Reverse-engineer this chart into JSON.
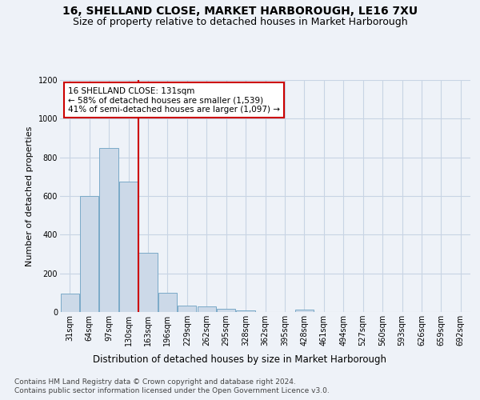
{
  "title": "16, SHELLAND CLOSE, MARKET HARBOROUGH, LE16 7XU",
  "subtitle": "Size of property relative to detached houses in Market Harborough",
  "xlabel": "Distribution of detached houses by size in Market Harborough",
  "ylabel": "Number of detached properties",
  "categories": [
    "31sqm",
    "64sqm",
    "97sqm",
    "130sqm",
    "163sqm",
    "196sqm",
    "229sqm",
    "262sqm",
    "295sqm",
    "328sqm",
    "362sqm",
    "395sqm",
    "428sqm",
    "461sqm",
    "494sqm",
    "527sqm",
    "560sqm",
    "593sqm",
    "626sqm",
    "659sqm",
    "692sqm"
  ],
  "values": [
    95,
    598,
    848,
    675,
    305,
    100,
    33,
    30,
    18,
    10,
    0,
    0,
    12,
    0,
    0,
    0,
    0,
    0,
    0,
    0,
    0
  ],
  "bar_color": "#ccd9e8",
  "bar_edge_color": "#7aaac8",
  "reference_line_color": "#cc0000",
  "annotation_text": "16 SHELLAND CLOSE: 131sqm\n← 58% of detached houses are smaller (1,539)\n41% of semi-detached houses are larger (1,097) →",
  "annotation_box_color": "#ffffff",
  "annotation_box_edge_color": "#cc0000",
  "ylim": [
    0,
    1200
  ],
  "yticks": [
    0,
    200,
    400,
    600,
    800,
    1000,
    1200
  ],
  "grid_color": "#c8d4e4",
  "background_color": "#eef2f8",
  "footer_line1": "Contains HM Land Registry data © Crown copyright and database right 2024.",
  "footer_line2": "Contains public sector information licensed under the Open Government Licence v3.0.",
  "title_fontsize": 10,
  "subtitle_fontsize": 9,
  "xlabel_fontsize": 8.5,
  "ylabel_fontsize": 8,
  "tick_fontsize": 7,
  "footer_fontsize": 6.5,
  "ref_bar_index": 3
}
